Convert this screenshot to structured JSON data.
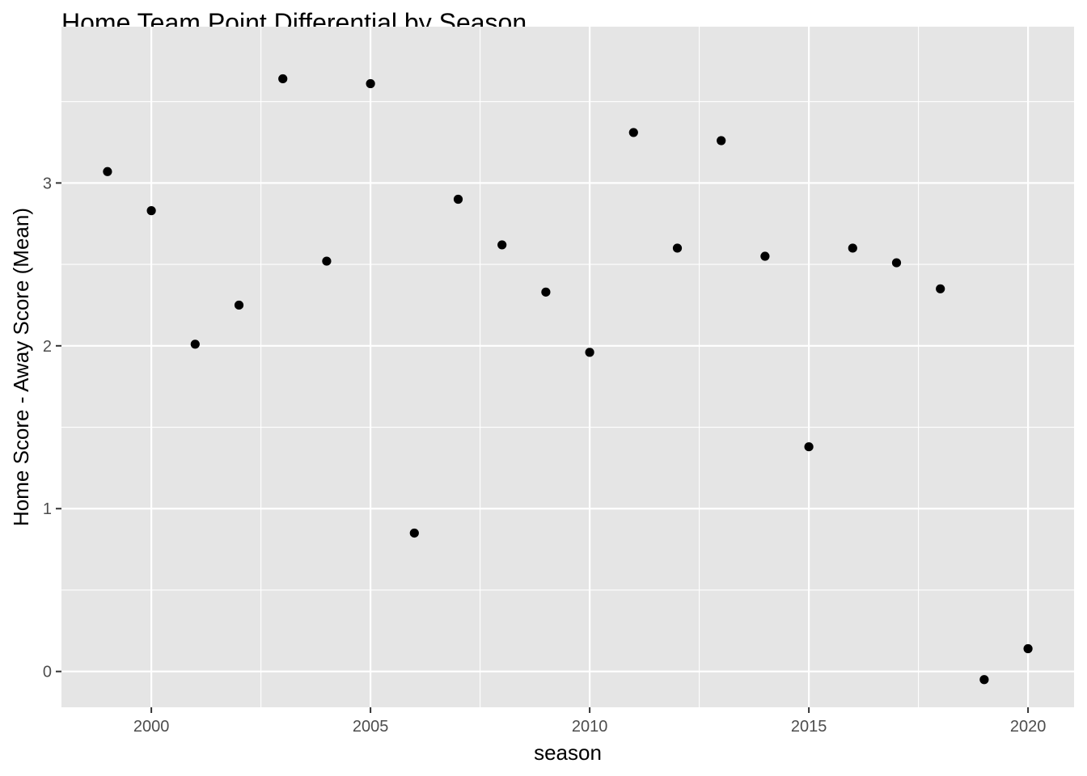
{
  "chart_data": {
    "type": "scatter",
    "title": "Home Team Point Differential by Season",
    "xlabel": "season",
    "ylabel": "Home Score - Away Score (Mean)",
    "xlim": [
      1997.95,
      2021.05
    ],
    "ylim": [
      -0.22,
      3.96
    ],
    "x_ticks": [
      2000,
      2005,
      2010,
      2015,
      2020
    ],
    "x_minor": [
      2002.5,
      2007.5,
      2012.5,
      2017.5
    ],
    "y_ticks": [
      0,
      1,
      2,
      3
    ],
    "y_minor": [
      0.5,
      1.5,
      2.5,
      3.5
    ],
    "grid": true,
    "legend": "none",
    "colors": {
      "panel": "#e5e5e5",
      "grid": "#ffffff",
      "point": "#000000"
    },
    "points": [
      {
        "x": 1999,
        "y": 3.07
      },
      {
        "x": 2000,
        "y": 2.83
      },
      {
        "x": 2001,
        "y": 2.01
      },
      {
        "x": 2002,
        "y": 2.25
      },
      {
        "x": 2003,
        "y": 3.64
      },
      {
        "x": 2004,
        "y": 2.52
      },
      {
        "x": 2005,
        "y": 3.61
      },
      {
        "x": 2006,
        "y": 0.85
      },
      {
        "x": 2007,
        "y": 2.9
      },
      {
        "x": 2008,
        "y": 2.62
      },
      {
        "x": 2009,
        "y": 2.33
      },
      {
        "x": 2010,
        "y": 1.96
      },
      {
        "x": 2011,
        "y": 3.31
      },
      {
        "x": 2012,
        "y": 2.6
      },
      {
        "x": 2013,
        "y": 3.26
      },
      {
        "x": 2014,
        "y": 2.55
      },
      {
        "x": 2015,
        "y": 1.38
      },
      {
        "x": 2016,
        "y": 2.6
      },
      {
        "x": 2017,
        "y": 2.51
      },
      {
        "x": 2018,
        "y": 2.35
      },
      {
        "x": 2019,
        "y": -0.05
      },
      {
        "x": 2020,
        "y": 0.14
      }
    ]
  }
}
